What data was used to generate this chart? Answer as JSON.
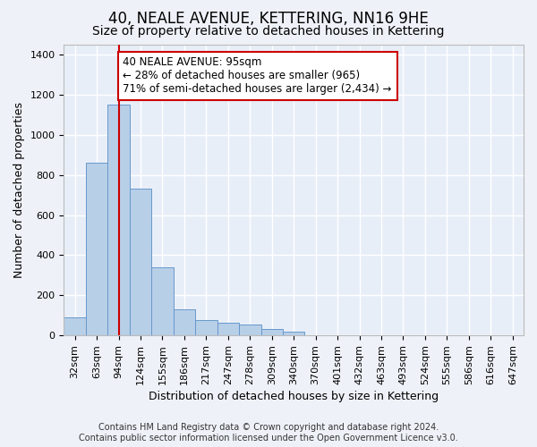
{
  "title": "40, NEALE AVENUE, KETTERING, NN16 9HE",
  "subtitle": "Size of property relative to detached houses in Kettering",
  "xlabel": "Distribution of detached houses by size in Kettering",
  "ylabel": "Number of detached properties",
  "footer_line1": "Contains HM Land Registry data © Crown copyright and database right 2024.",
  "footer_line2": "Contains public sector information licensed under the Open Government Licence v3.0.",
  "bin_labels": [
    "32sqm",
    "63sqm",
    "94sqm",
    "124sqm",
    "155sqm",
    "186sqm",
    "217sqm",
    "247sqm",
    "278sqm",
    "309sqm",
    "340sqm",
    "370sqm",
    "401sqm",
    "432sqm",
    "463sqm",
    "493sqm",
    "524sqm",
    "555sqm",
    "586sqm",
    "616sqm",
    "647sqm"
  ],
  "bar_values": [
    90,
    860,
    1150,
    730,
    340,
    130,
    75,
    65,
    55,
    30,
    20,
    0,
    0,
    0,
    0,
    0,
    0,
    0,
    0,
    0,
    0
  ],
  "bar_color": "#b8cfe8",
  "bar_edge_color": "#6699cc",
  "property_bin_index": 2,
  "red_line_color": "#cc0000",
  "annotation_line1": "40 NEALE AVENUE: 95sqm",
  "annotation_line2": "← 28% of detached houses are smaller (965)",
  "annotation_line3": "71% of semi-detached houses are larger (2,434) →",
  "annotation_box_color": "#ffffff",
  "annotation_border_color": "#cc0000",
  "ylim": [
    0,
    1450
  ],
  "yticks": [
    0,
    200,
    400,
    600,
    800,
    1000,
    1200,
    1400
  ],
  "bg_color": "#eef2f8",
  "plot_bg_color": "#e8eef8",
  "grid_color": "#ffffff",
  "title_fontsize": 12,
  "subtitle_fontsize": 10,
  "axis_label_fontsize": 9,
  "tick_fontsize": 8,
  "footer_fontsize": 7,
  "annotation_fontsize": 8.5
}
